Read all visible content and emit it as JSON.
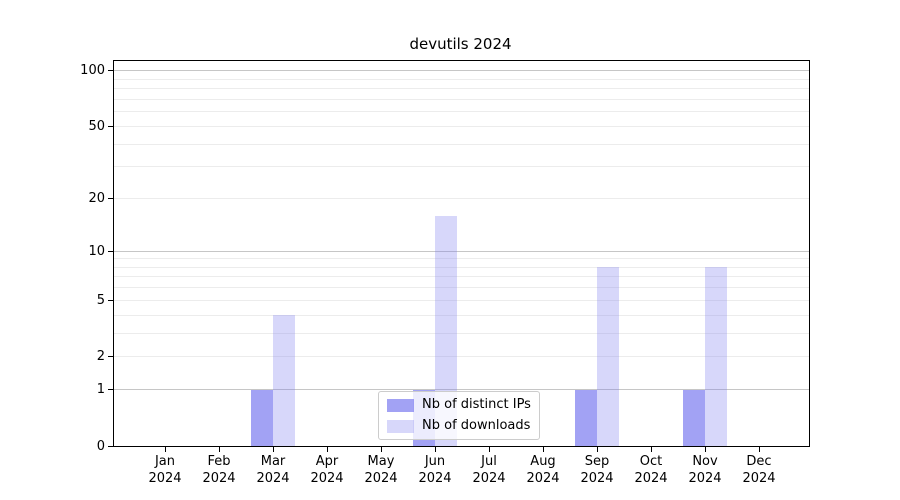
{
  "chart_data": {
    "type": "bar",
    "title": "devutils 2024",
    "categories": [
      "Jan",
      "Feb",
      "Mar",
      "Apr",
      "May",
      "Jun",
      "Jul",
      "Aug",
      "Sep",
      "Oct",
      "Nov",
      "Dec"
    ],
    "x_sublabel": "2024",
    "series": [
      {
        "name": "Nb of distinct IPs",
        "color": "rgba(123,123,240,0.7)",
        "values": [
          0,
          0,
          1,
          0,
          0,
          1,
          0,
          0,
          1,
          0,
          1,
          0
        ]
      },
      {
        "name": "Nb of downloads",
        "color": "rgba(123,123,240,0.3)",
        "values": [
          0,
          0,
          4,
          0,
          0,
          16,
          0,
          0,
          8,
          0,
          8,
          0
        ]
      }
    ],
    "yscale": "log10(1+v)",
    "ylim": [
      0,
      113
    ],
    "yticks": [
      0,
      1,
      2,
      5,
      10,
      20,
      50,
      100
    ],
    "major_gridlines": [
      1,
      10,
      100
    ],
    "minor_gridlines": [
      2,
      3,
      4,
      5,
      6,
      7,
      8,
      9,
      20,
      30,
      40,
      50,
      60,
      70,
      80,
      90
    ],
    "grid": true,
    "legend_position": "lower-center-inside",
    "xlabel": "",
    "ylabel": ""
  },
  "colors": {
    "background": "#ffffff",
    "axis": "#000000",
    "text": "#000000",
    "major_grid": "#c6c6c6",
    "minor_grid": "#ececec",
    "bar_base": "#7b7bf0",
    "legend_border": "#cccccc",
    "legend_background": "rgba(255,255,255,0.8)"
  }
}
